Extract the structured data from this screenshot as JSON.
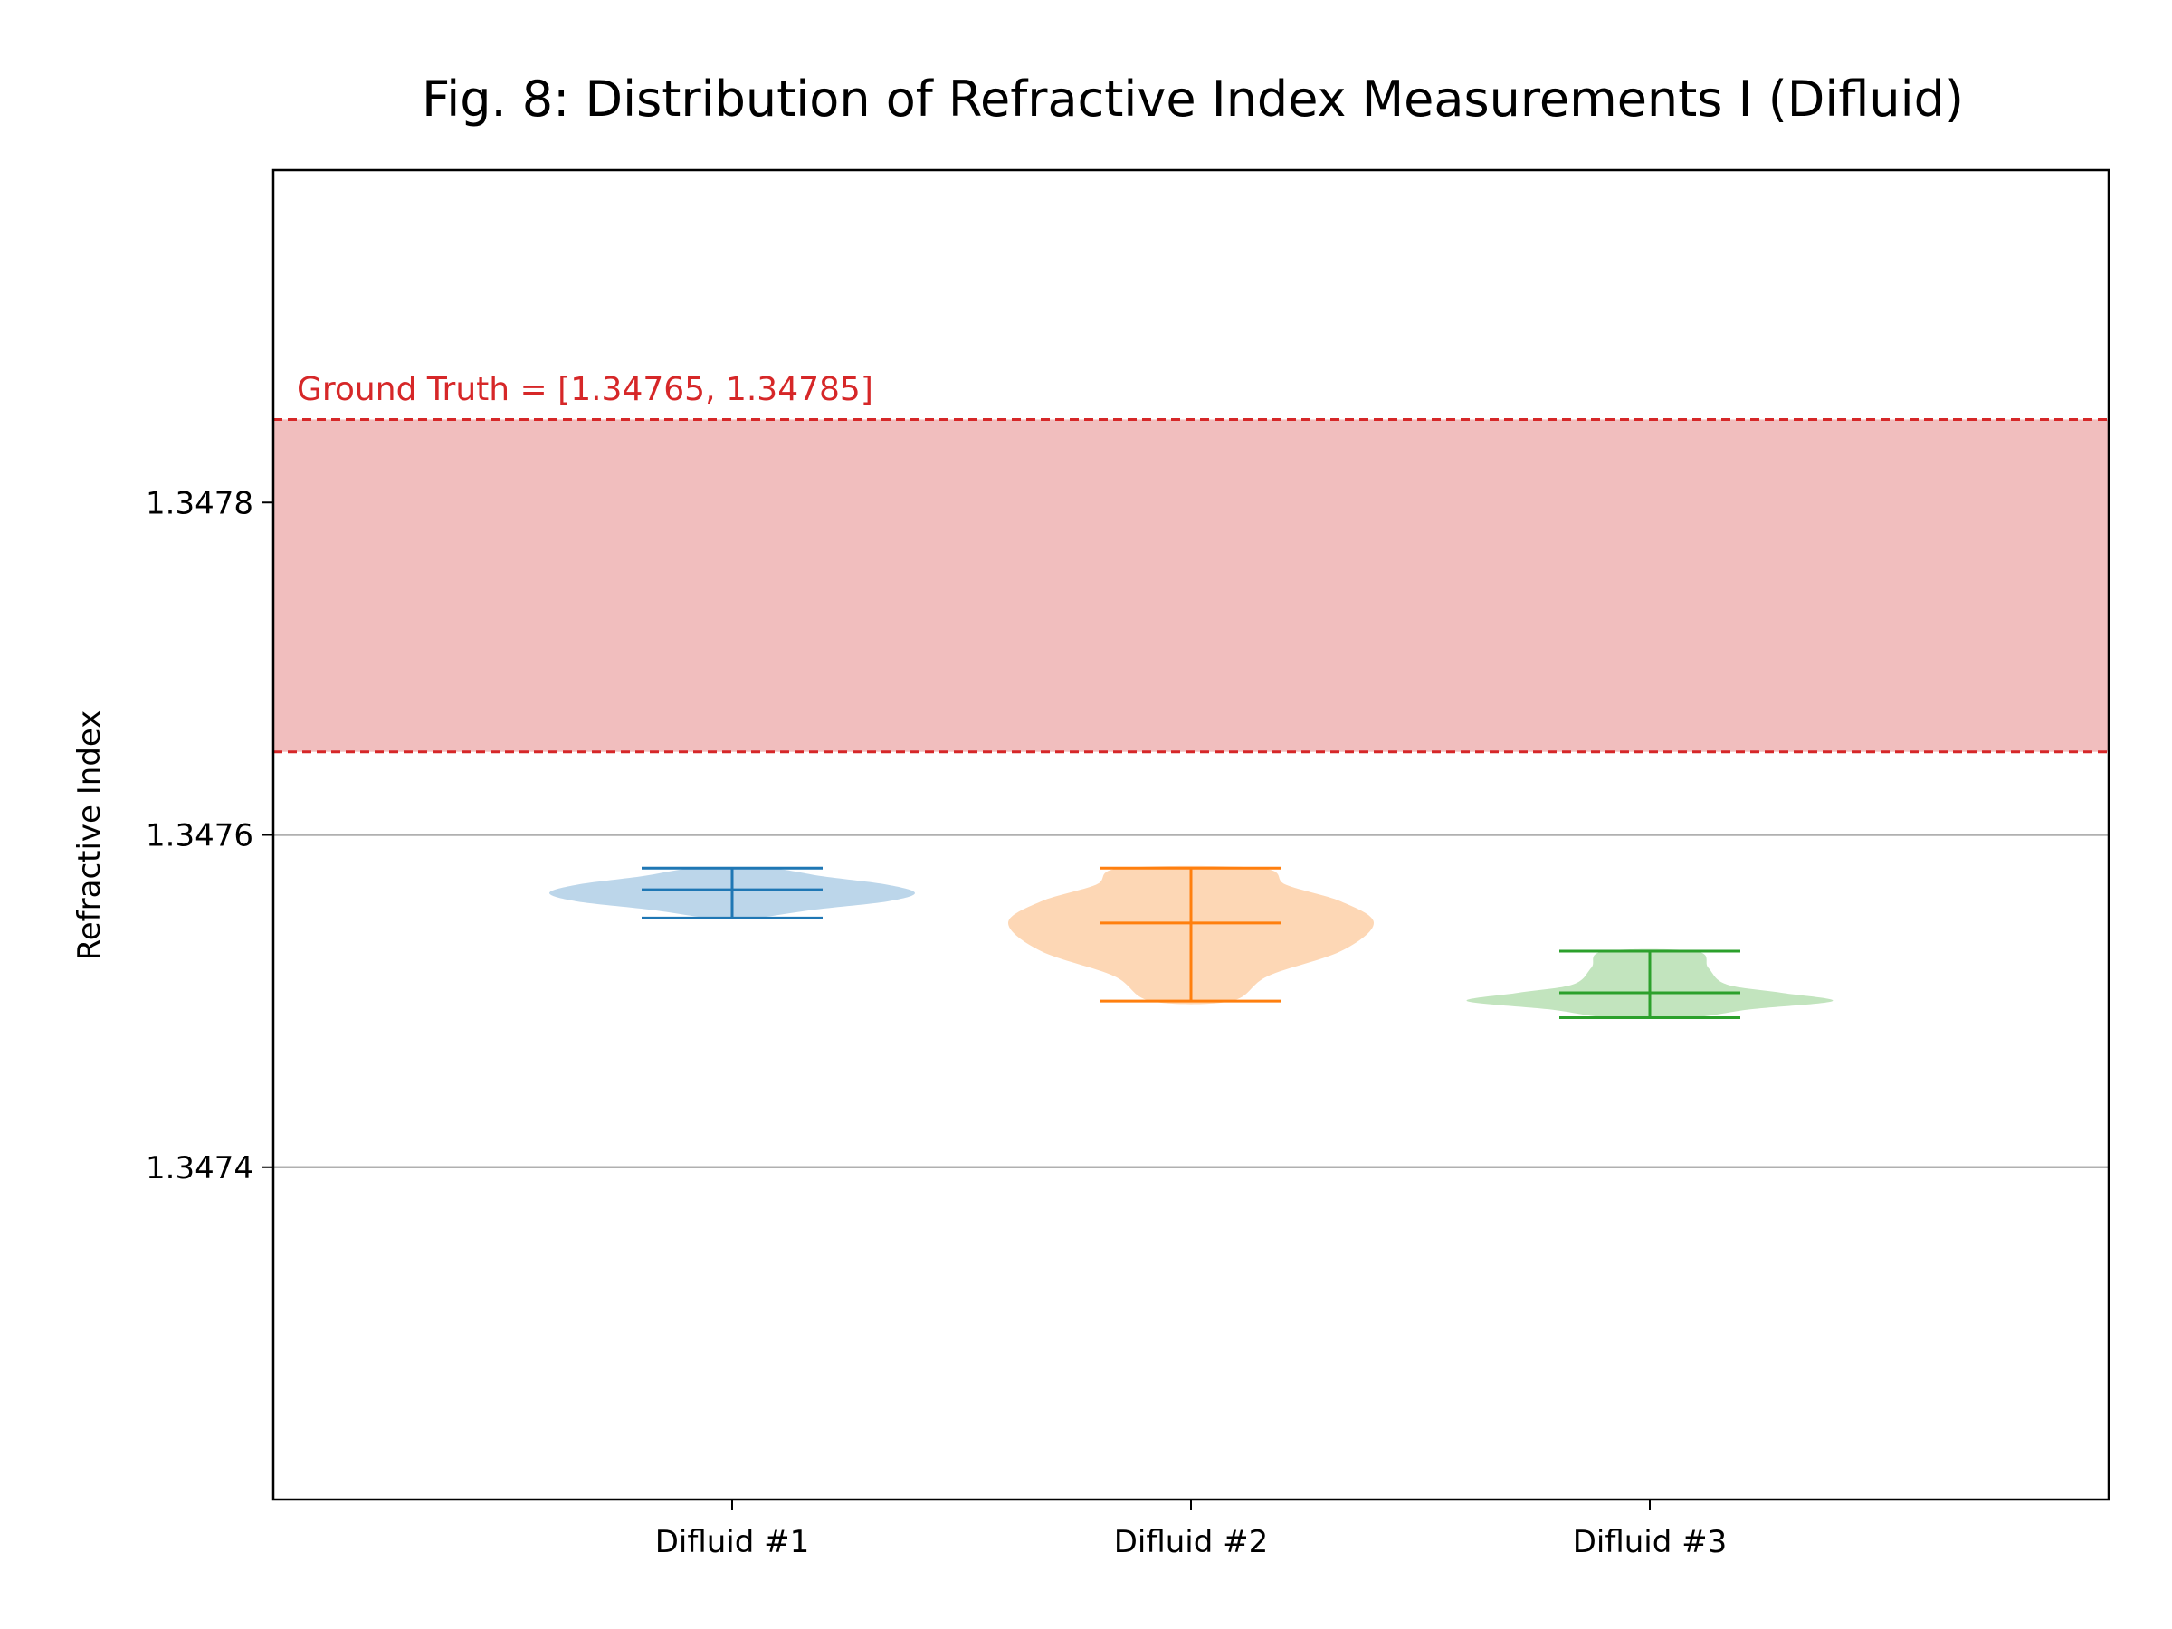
{
  "chart_data": {
    "type": "violin",
    "title": "Fig. 8: Distribution of Refractive Index Measurements I (Difluid)",
    "xlabel": "",
    "ylabel": "Refractive Index",
    "ylim": [
      1.3472,
      1.348
    ],
    "yticks": [
      1.3474,
      1.3476,
      1.3478
    ],
    "ytick_labels": [
      "1.3474",
      "1.3476",
      "1.3478"
    ],
    "categories": [
      "Difluid #1",
      "Difluid #2",
      "Difluid #3"
    ],
    "grid": "horizontal",
    "series": [
      {
        "name": "Difluid #1",
        "color": "#1f77b4",
        "fill": "#bcd6ea",
        "min": 1.34755,
        "max": 1.34758,
        "mean": 1.347567,
        "profile": [
          [
            1.34755,
            0.12
          ],
          [
            1.347555,
            0.45
          ],
          [
            1.34756,
            0.85
          ],
          [
            1.347565,
            1.0
          ],
          [
            1.34757,
            0.85
          ],
          [
            1.347575,
            0.5
          ],
          [
            1.34758,
            0.2
          ]
        ]
      },
      {
        "name": "Difluid #2",
        "color": "#ff7f0e",
        "fill": "#fdd7b5",
        "min": 1.3475,
        "max": 1.34758,
        "mean": 1.347547,
        "profile": [
          [
            1.3475,
            0.22
          ],
          [
            1.347515,
            0.42
          ],
          [
            1.34753,
            0.82
          ],
          [
            1.347547,
            1.0
          ],
          [
            1.34756,
            0.82
          ],
          [
            1.34757,
            0.52
          ],
          [
            1.34758,
            0.38
          ]
        ]
      },
      {
        "name": "Difluid #3",
        "color": "#2ca02c",
        "fill": "#c2e4be",
        "min": 1.34749,
        "max": 1.34753,
        "mean": 1.347505,
        "profile": [
          [
            1.34749,
            0.22
          ],
          [
            1.347495,
            0.55
          ],
          [
            1.3475,
            1.0
          ],
          [
            1.347505,
            0.72
          ],
          [
            1.34751,
            0.42
          ],
          [
            1.34752,
            0.32
          ],
          [
            1.34753,
            0.25
          ]
        ]
      }
    ],
    "annotation": {
      "label": "Ground Truth = [1.34765, 1.34785]",
      "low": 1.34765,
      "high": 1.34785,
      "color": "#d62728",
      "fill": "#f1bebe"
    }
  }
}
